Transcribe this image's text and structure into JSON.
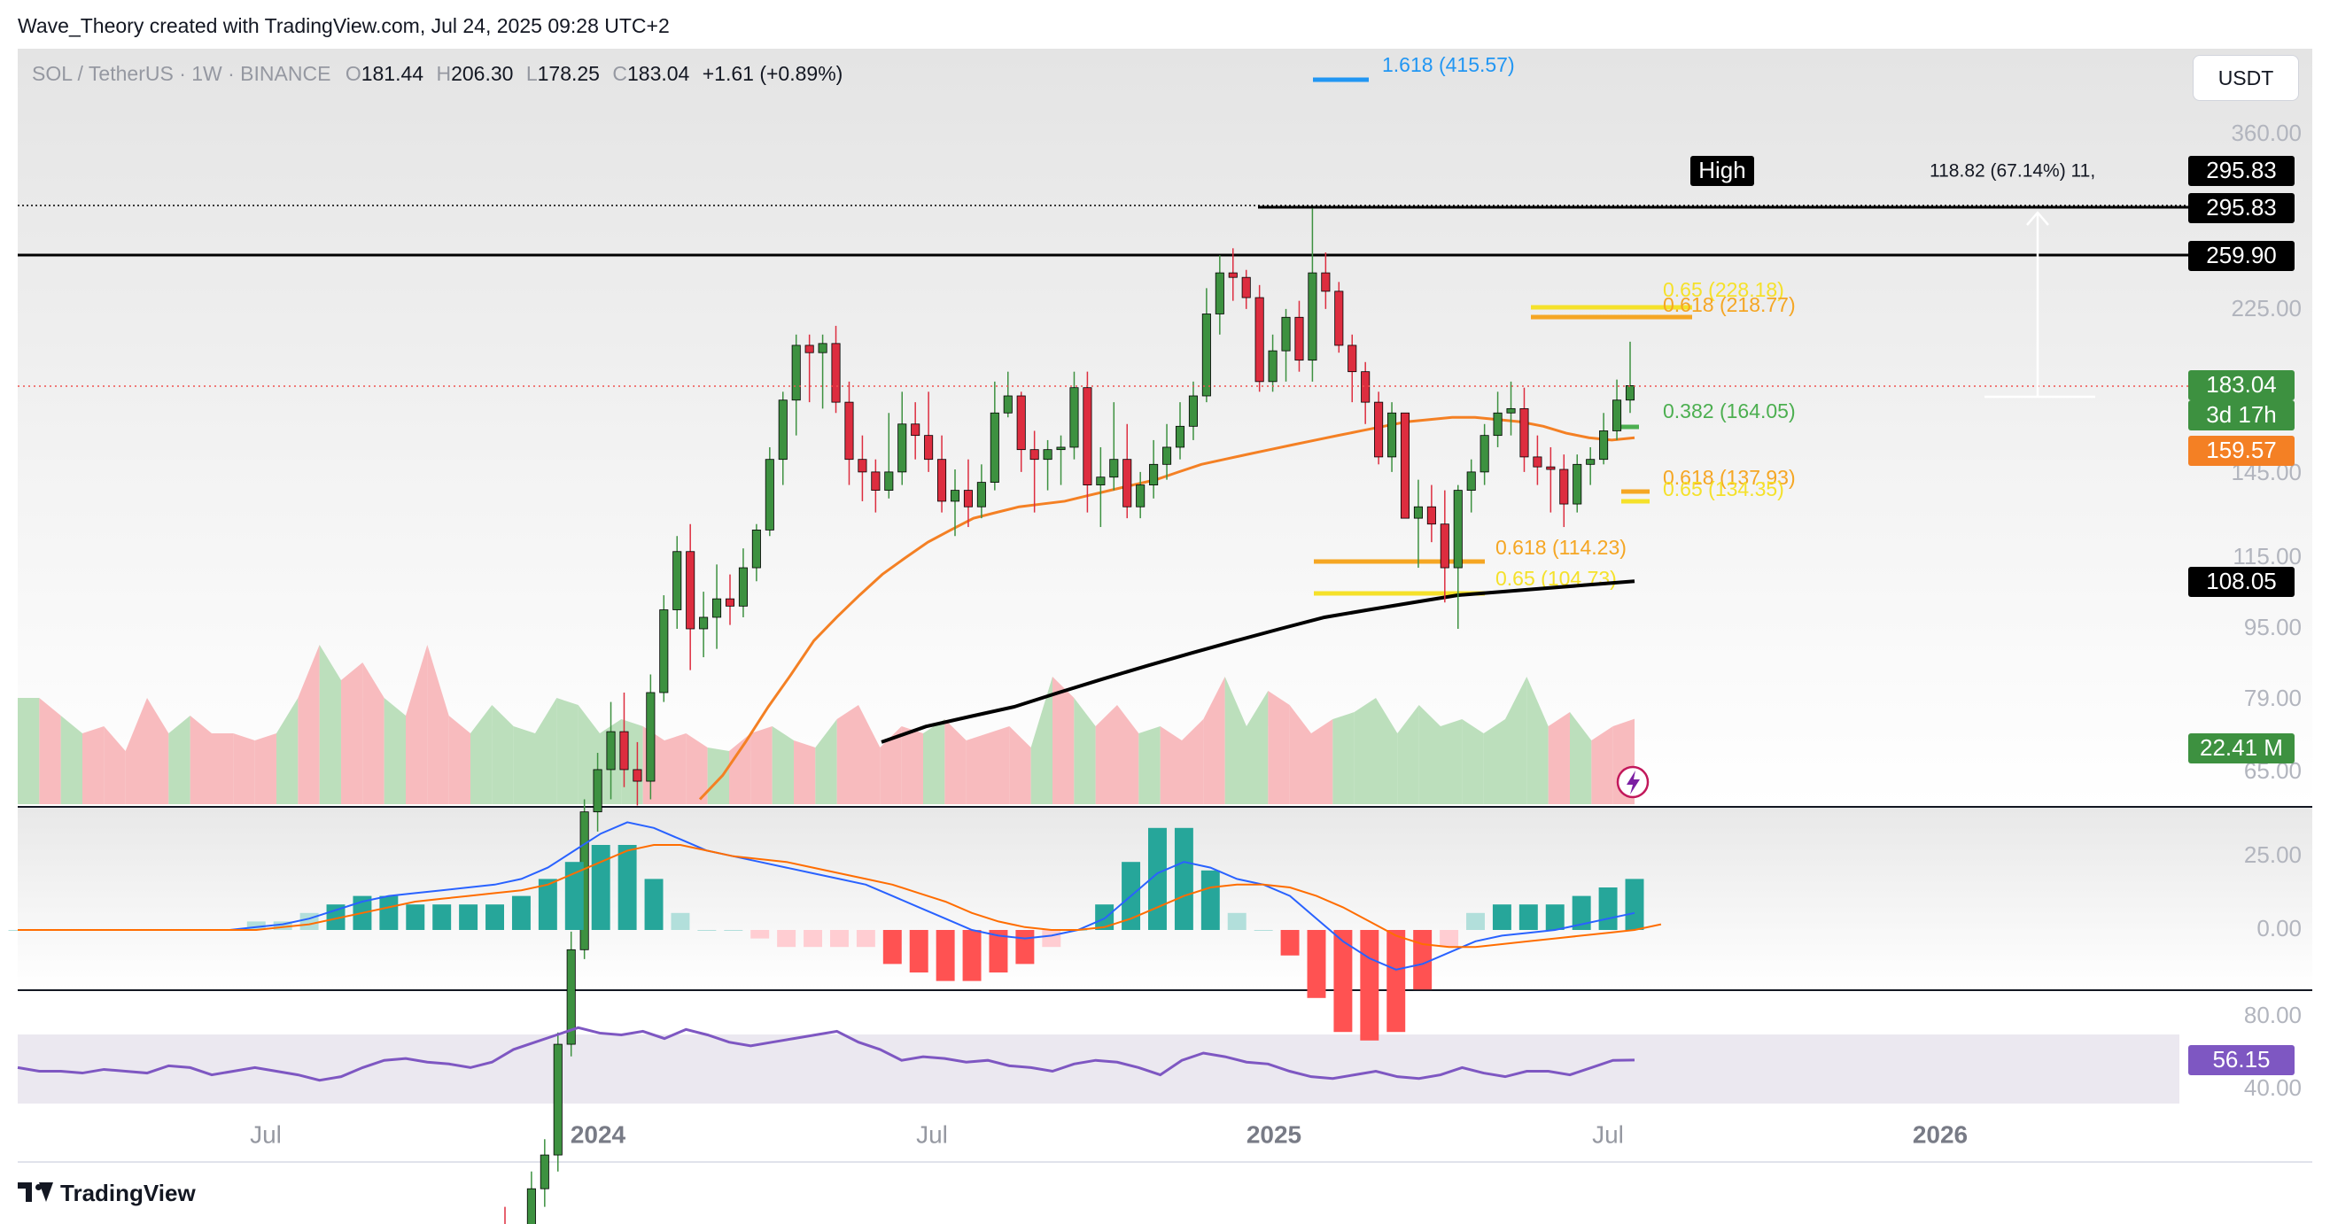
{
  "header": {
    "credit": "Wave_Theory created with TradingView.com, Jul 24, 2025 09:28 UTC+2",
    "symbol": "SOL / TetherUS · 1W · BINANCE",
    "o_label": "O",
    "o_value": "181.44",
    "h_label": "H",
    "h_value": "206.30",
    "l_label": "L",
    "l_value": "178.25",
    "c_label": "C",
    "c_value": "183.04",
    "change": "+1.61 (+0.89%)"
  },
  "currency_button": "USDT",
  "logo_text": "TradingView",
  "colors": {
    "bull": "#26a69a",
    "bear": "#ef5350",
    "candle_bull": "#3d9140",
    "candle_bear": "#dd2d3f",
    "vol_bull": "#b5dbb5",
    "vol_bear": "#f7b4b7",
    "ema_orange": "#f48024",
    "ema_black": "#000000",
    "fib_orange": "#f5a623",
    "fib_yellow": "#f5e12a",
    "fib_green": "#4caf50",
    "fib_blue": "#2196f3",
    "rsi": "#7e57c2",
    "macd": "#2962ff",
    "signal": "#ff6d00"
  },
  "chart_data": [
    {
      "type": "candlestick",
      "title": "SOL / TetherUS · 1W · BINANCE",
      "x_ticks": [
        "Jul",
        "2024",
        "Jul",
        "2025",
        "Jul",
        "2026"
      ],
      "y_ticks": [
        "360.00",
        "225.00",
        "145.00",
        "115.00",
        "95.00",
        "79.00",
        "65.00"
      ],
      "ylim": [
        60,
        420
      ],
      "scale": "log",
      "last_close": 183.04,
      "ohlc_weekly_approx": [
        [
          19,
          20,
          17,
          18
        ],
        [
          18,
          19,
          17,
          18
        ],
        [
          18,
          22,
          17,
          21
        ],
        [
          21,
          24,
          20,
          23
        ],
        [
          23,
          32,
          22,
          31
        ],
        [
          31,
          42,
          30,
          40
        ],
        [
          40,
          60,
          39,
          58
        ],
        [
          58,
          68,
          55,
          65
        ],
        [
          65,
          78,
          60,
          72
        ],
        [
          72,
          80,
          62,
          65
        ],
        [
          65,
          70,
          59,
          63
        ],
        [
          63,
          84,
          60,
          80
        ],
        [
          80,
          104,
          78,
          100
        ],
        [
          100,
          122,
          95,
          117
        ],
        [
          117,
          126,
          85,
          95
        ],
        [
          95,
          105,
          88,
          98
        ],
        [
          98,
          113,
          90,
          103
        ],
        [
          103,
          110,
          96,
          101
        ],
        [
          101,
          118,
          98,
          112
        ],
        [
          112,
          126,
          108,
          124
        ],
        [
          124,
          155,
          122,
          150
        ],
        [
          150,
          180,
          140,
          176
        ],
        [
          176,
          210,
          160,
          204
        ],
        [
          204,
          210,
          175,
          200
        ],
        [
          200,
          210,
          172,
          205
        ],
        [
          205,
          215,
          170,
          175
        ],
        [
          175,
          185,
          140,
          150
        ],
        [
          150,
          160,
          134,
          145
        ],
        [
          145,
          150,
          130,
          138
        ],
        [
          138,
          170,
          135,
          145
        ],
        [
          145,
          180,
          140,
          165
        ],
        [
          165,
          175,
          150,
          160
        ],
        [
          160,
          180,
          145,
          150
        ],
        [
          150,
          160,
          130,
          134
        ],
        [
          134,
          146,
          122,
          138
        ],
        [
          138,
          150,
          125,
          132
        ],
        [
          132,
          148,
          128,
          141
        ],
        [
          141,
          185,
          138,
          170
        ],
        [
          170,
          190,
          168,
          178
        ],
        [
          178,
          180,
          145,
          154
        ],
        [
          154,
          162,
          130,
          150
        ],
        [
          150,
          158,
          138,
          154
        ],
        [
          154,
          160,
          140,
          155
        ],
        [
          155,
          190,
          150,
          182
        ],
        [
          182,
          190,
          130,
          140
        ],
        [
          140,
          155,
          125,
          143
        ],
        [
          143,
          175,
          138,
          150
        ],
        [
          150,
          165,
          128,
          132
        ],
        [
          132,
          145,
          128,
          140
        ],
        [
          140,
          158,
          135,
          148
        ],
        [
          148,
          165,
          142,
          155
        ],
        [
          155,
          175,
          150,
          164
        ],
        [
          164,
          185,
          158,
          178
        ],
        [
          178,
          238,
          175,
          222
        ],
        [
          222,
          260,
          210,
          248
        ],
        [
          248,
          265,
          230,
          245
        ],
        [
          245,
          250,
          225,
          232
        ],
        [
          232,
          240,
          180,
          185
        ],
        [
          185,
          210,
          180,
          201
        ],
        [
          201,
          225,
          185,
          220
        ],
        [
          220,
          230,
          190,
          196
        ],
        [
          196,
          295,
          185,
          248
        ],
        [
          248,
          262,
          225,
          236
        ],
        [
          236,
          242,
          200,
          204
        ],
        [
          204,
          210,
          175,
          190
        ],
        [
          190,
          195,
          165,
          175
        ],
        [
          175,
          180,
          148,
          151
        ],
        [
          151,
          175,
          145,
          170
        ],
        [
          170,
          170,
          130,
          128
        ],
        [
          128,
          142,
          112,
          132
        ],
        [
          132,
          140,
          120,
          126
        ],
        [
          126,
          138,
          102,
          112
        ],
        [
          112,
          140,
          95,
          138
        ],
        [
          138,
          150,
          130,
          145
        ],
        [
          145,
          165,
          140,
          160
        ],
        [
          160,
          180,
          155,
          170
        ],
        [
          170,
          185,
          160,
          172
        ],
        [
          172,
          182,
          145,
          151
        ],
        [
          151,
          160,
          140,
          147
        ],
        [
          147,
          155,
          130,
          146
        ],
        [
          146,
          152,
          125,
          133
        ],
        [
          133,
          152,
          130,
          148
        ],
        [
          148,
          155,
          140,
          150
        ],
        [
          150,
          170,
          148,
          162
        ],
        [
          162,
          186,
          158,
          176
        ],
        [
          176,
          206,
          170,
          183
        ]
      ],
      "ema_orange": [
        60,
        64,
        70,
        77,
        84,
        92,
        98,
        104,
        110,
        115,
        120,
        124,
        128,
        130,
        132,
        133,
        134,
        136,
        138,
        140,
        142,
        145,
        148,
        150,
        152,
        154,
        156,
        158,
        160,
        162,
        164,
        166,
        167,
        168,
        168,
        167,
        166,
        164,
        161,
        159,
        158,
        159
      ],
      "ema_black": [
        70,
        73,
        75,
        77,
        80,
        83,
        86,
        89,
        92,
        95,
        98,
        100,
        102,
        104,
        105,
        106,
        107,
        108
      ],
      "annotations": [
        {
          "label": "1.618 (415.57)",
          "value": 415.57,
          "color": "#2196f3"
        },
        {
          "label": "0.65 (228.18)",
          "value": 228.18,
          "color": "#f5e12a"
        },
        {
          "label": "0.618 (218.77)",
          "value": 218.77,
          "color": "#f5a623"
        },
        {
          "label": "0.382 (164.05)",
          "value": 164.05,
          "color": "#4caf50"
        },
        {
          "label": "0.618 (137.93)",
          "value": 137.93,
          "color": "#f5a623"
        },
        {
          "label": "0.65 (134.35)",
          "value": 134.35,
          "color": "#f5e12a"
        },
        {
          "label": "0.618 (114.23)",
          "value": 114.23,
          "color": "#f5a623"
        },
        {
          "label": "0.65 (104.73)",
          "value": 104.73,
          "color": "#f5e12a"
        }
      ],
      "price_labels": [
        {
          "text": "High",
          "bg": "#000000"
        },
        {
          "text": "295.83",
          "bg": "#000000"
        },
        {
          "text": "295.83",
          "bg": "#000000"
        },
        {
          "text": "259.90",
          "bg": "#000000"
        },
        {
          "text": "183.04",
          "bg": "#3d9140"
        },
        {
          "text": "3d 17h",
          "bg": "#3d9140"
        },
        {
          "text": "159.57",
          "bg": "#f48024"
        },
        {
          "text": "108.05",
          "bg": "#000000"
        },
        {
          "text": "22.41 M",
          "bg": "#3d9140"
        }
      ],
      "measure_label": "118.82 (67.14%) 11,"
    },
    {
      "type": "bar",
      "title": "Volume",
      "values_approx": [
        3,
        3,
        2.5,
        2,
        2.2,
        1.5,
        3,
        2,
        2.5,
        2,
        2,
        1.8,
        2,
        3,
        4.5,
        3.5,
        4,
        3,
        2.5,
        4.5,
        2.5,
        2,
        2.8,
        2.2,
        2,
        3,
        2.8,
        2,
        2.4,
        2.2,
        1.8,
        2,
        1.6,
        1.5,
        2,
        2.2,
        1.8,
        1.6,
        2.4,
        2.8,
        1.6,
        2.2,
        2,
        2.4,
        1.8,
        2,
        2.2,
        1.6,
        3.6,
        3,
        2.2,
        2.8,
        2,
        2.2,
        1.8,
        2.4,
        3.6,
        2.2,
        3.2,
        2.8,
        2,
        2.4,
        2.6,
        3,
        2,
        2.8,
        2.2,
        2.4,
        2,
        2.4,
        3.6,
        2.2,
        2.6,
        1.8,
        2.2,
        2.41
      ]
    },
    {
      "type": "line",
      "title": "MACD",
      "y_ticks": [
        "25.00",
        "0.00"
      ],
      "series": [
        {
          "values": [
            0,
            0,
            0,
            0,
            0,
            0,
            0,
            0,
            0,
            1,
            2,
            4,
            7,
            10,
            12,
            13,
            14,
            15,
            16,
            18,
            22,
            28,
            34,
            38,
            36,
            32,
            28,
            26,
            24,
            22,
            20,
            18,
            16,
            12,
            8,
            4,
            0,
            -2,
            -3,
            -2,
            0,
            4,
            12,
            20,
            24,
            22,
            18,
            16,
            12,
            4,
            -4,
            -10,
            -14,
            -12,
            -8,
            -4,
            -2,
            -1,
            0,
            2,
            4,
            6
          ]
        },
        {
          "values": [
            0,
            0,
            0,
            0,
            0,
            0,
            0,
            0,
            0,
            0,
            1,
            2,
            4,
            6,
            8,
            10,
            11,
            12,
            13,
            14,
            16,
            20,
            24,
            28,
            30,
            30,
            28,
            26,
            25,
            24,
            22,
            20,
            18,
            16,
            13,
            10,
            6,
            3,
            1,
            0,
            0,
            1,
            4,
            8,
            12,
            15,
            16,
            16,
            15,
            12,
            8,
            3,
            -2,
            -5,
            -6,
            -6,
            -5,
            -4,
            -3,
            -2,
            -1,
            0,
            2
          ]
        }
      ]
    },
    {
      "type": "line",
      "title": "RSI",
      "y_ticks": [
        "80.00",
        "40.00"
      ],
      "last_value": "56.15",
      "series": [
        {
          "values": [
            52,
            50,
            50,
            49,
            51,
            50,
            49,
            53,
            52,
            48,
            50,
            52,
            50,
            48,
            45,
            47,
            52,
            56,
            57,
            55,
            54,
            52,
            55,
            62,
            66,
            70,
            74,
            71,
            70,
            72,
            68,
            73,
            70,
            66,
            64,
            66,
            68,
            70,
            72,
            66,
            62,
            56,
            58,
            57,
            55,
            56,
            53,
            52,
            50,
            54,
            56,
            55,
            52,
            48,
            56,
            60,
            58,
            55,
            54,
            50,
            47,
            46,
            48,
            50,
            47,
            46,
            48,
            52,
            49,
            47,
            50,
            50,
            48,
            52,
            56,
            56.15
          ]
        }
      ]
    }
  ]
}
